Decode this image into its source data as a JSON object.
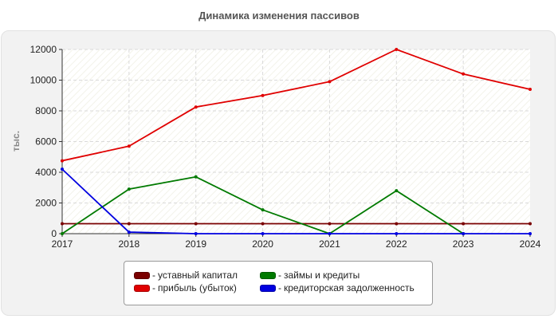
{
  "chart_data": {
    "type": "line",
    "title": "Динамика изменения пассивов",
    "xlabel": "",
    "ylabel": "тыс.",
    "x": [
      "2017",
      "2018",
      "2019",
      "2020",
      "2021",
      "2022",
      "2023",
      "2024"
    ],
    "ylim": [
      0,
      12000
    ],
    "yticks": [
      "0",
      "2000",
      "4000",
      "6000",
      "8000",
      "10000",
      "12000"
    ],
    "grid": true,
    "legend_position": "bottom",
    "series": [
      {
        "name": "уставный капитал",
        "color": "#7a0000",
        "values": [
          650,
          650,
          650,
          650,
          650,
          650,
          650,
          650
        ]
      },
      {
        "name": "прибыль (убыток)",
        "color": "#e00000",
        "values": [
          4750,
          5700,
          8250,
          9000,
          9900,
          12000,
          10400,
          9400
        ]
      },
      {
        "name": "займы и кредиты",
        "color": "#007a00",
        "values": [
          0,
          2900,
          3700,
          1550,
          0,
          2800,
          0,
          null
        ]
      },
      {
        "name": "кредиторская задолженность",
        "color": "#0000e0",
        "values": [
          4200,
          100,
          0,
          0,
          0,
          0,
          0,
          0
        ]
      }
    ]
  }
}
